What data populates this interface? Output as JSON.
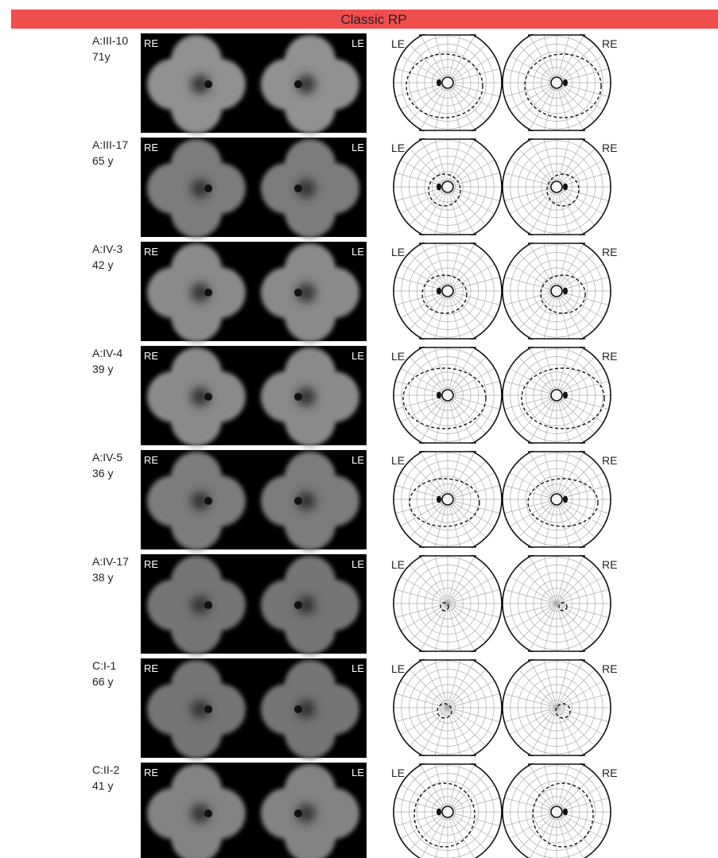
{
  "header": {
    "title": "Classic RP"
  },
  "rows": [
    {
      "id": "A:III-10",
      "age": "71y",
      "fundus_labels": [
        "RE",
        "LE"
      ],
      "field_labels": [
        "LE",
        "RE"
      ]
    },
    {
      "id": "A:III-17",
      "age": "65 y",
      "fundus_labels": [
        "RE",
        "LE"
      ],
      "field_labels": [
        "LE",
        "RE"
      ]
    },
    {
      "id": "A:IV-3",
      "age": "42 y",
      "fundus_labels": [
        "RE",
        "LE"
      ],
      "field_labels": [
        "LE",
        "RE"
      ]
    },
    {
      "id": "A:IV-4",
      "age": "39 y",
      "fundus_labels": [
        "RE",
        "LE"
      ],
      "field_labels": [
        "LE",
        "RE"
      ]
    },
    {
      "id": "A:IV-5",
      "age": "36 y",
      "fundus_labels": [
        "RE",
        "LE"
      ],
      "field_labels": [
        "LE",
        "RE"
      ]
    },
    {
      "id": "A:IV-17",
      "age": "38 y",
      "fundus_labels": [
        "RE",
        "LE"
      ],
      "field_labels": [
        "LE",
        "RE"
      ]
    },
    {
      "id": "C:I-1",
      "age": "66 y",
      "fundus_labels": [
        "RE",
        "LE"
      ],
      "field_labels": [
        "LE",
        "RE"
      ]
    },
    {
      "id": "C:II-2",
      "age": "41 y",
      "fundus_labels": [
        "RE",
        "LE"
      ],
      "field_labels": [
        "LE",
        "RE"
      ]
    }
  ]
}
